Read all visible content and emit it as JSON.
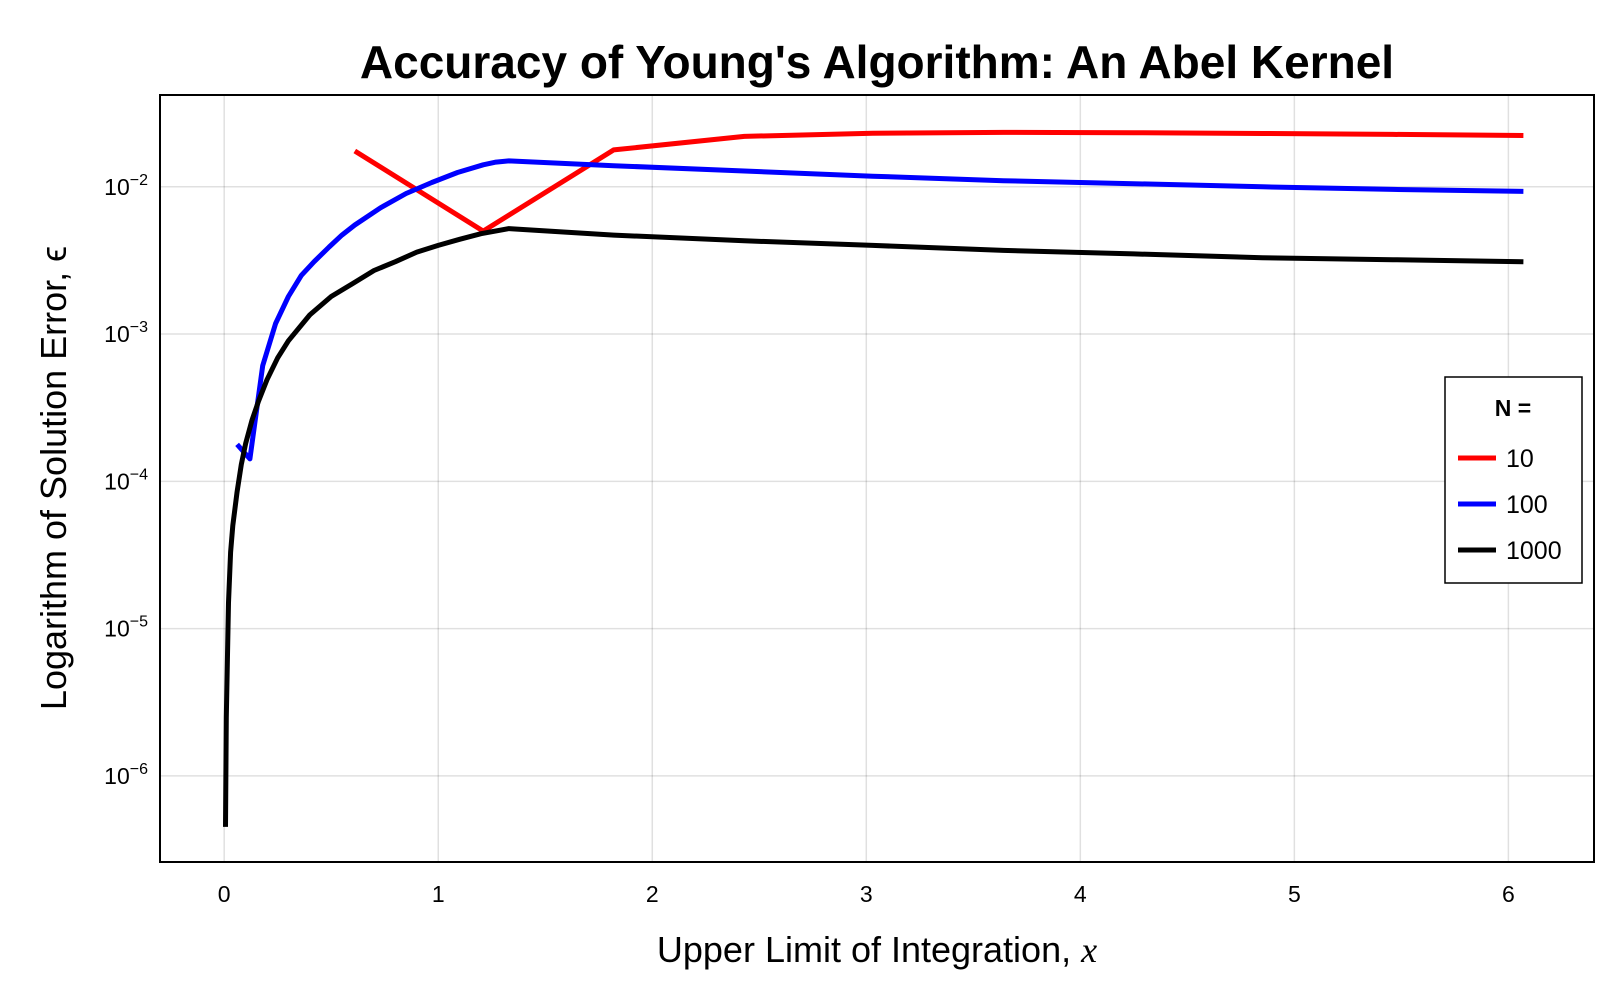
{
  "chart_data": {
    "type": "line",
    "title": "Accuracy of Young's Algorithm: An Abel Kernel",
    "xlabel": "Upper Limit of Integration, ",
    "xlabel_var": "x",
    "ylabel": "Logarithm of Solution Error, ϵ",
    "yscale": "log",
    "xlim": [
      -0.3,
      6.4
    ],
    "ylim": [
      2.6e-07,
      0.042
    ],
    "xticks": [
      0,
      1,
      2,
      3,
      4,
      5,
      6
    ],
    "xtick_labels": [
      "0",
      "1",
      "2",
      "3",
      "4",
      "5",
      "6"
    ],
    "yticks": [
      1e-06,
      1e-05,
      0.0001,
      0.001,
      0.01
    ],
    "ytick_base": "10",
    "ytick_exponents": [
      "−6",
      "−5",
      "−4",
      "−3",
      "−2"
    ],
    "grid": true,
    "legend": {
      "title": "N =",
      "position": "right"
    },
    "series": [
      {
        "name": "10",
        "color": "#ff0000",
        "x": [
          0.61,
          1.21,
          1.82,
          2.43,
          3.03,
          3.64,
          4.25,
          4.85,
          5.46,
          6.07
        ],
        "y": [
          0.0175,
          0.005,
          0.0178,
          0.022,
          0.0231,
          0.0234,
          0.0233,
          0.023,
          0.0227,
          0.0223
        ]
      },
      {
        "name": "100",
        "color": "#0000ff",
        "x": [
          0.06,
          0.12,
          0.18,
          0.24,
          0.3,
          0.36,
          0.42,
          0.49,
          0.55,
          0.61,
          0.73,
          0.85,
          0.97,
          1.09,
          1.21,
          1.27,
          1.33,
          1.82,
          2.43,
          3.03,
          3.64,
          4.25,
          4.85,
          5.46,
          6.07
        ],
        "y": [
          0.000178,
          0.000142,
          0.00061,
          0.00118,
          0.0018,
          0.0025,
          0.0031,
          0.0039,
          0.0047,
          0.0055,
          0.0072,
          0.009,
          0.0107,
          0.0125,
          0.0141,
          0.0147,
          0.015,
          0.0139,
          0.0128,
          0.0118,
          0.011,
          0.0105,
          0.01,
          0.0096,
          0.0093
        ]
      },
      {
        "name": "1000",
        "color": "#000000",
        "x": [
          0.006,
          0.01,
          0.02,
          0.03,
          0.04,
          0.06,
          0.08,
          0.1,
          0.13,
          0.16,
          0.2,
          0.25,
          0.3,
          0.4,
          0.5,
          0.6,
          0.7,
          0.8,
          0.9,
          1.0,
          1.1,
          1.2,
          1.33,
          1.82,
          2.43,
          3.03,
          3.64,
          4.25,
          4.85,
          5.46,
          6.07
        ],
        "y": [
          4.5e-07,
          2.5e-06,
          1.5e-05,
          3.3e-05,
          5e-05,
          8.5e-05,
          0.00013,
          0.00018,
          0.00026,
          0.00035,
          0.00049,
          0.00069,
          0.0009,
          0.00135,
          0.0018,
          0.0022,
          0.0027,
          0.0031,
          0.0036,
          0.004,
          0.0044,
          0.0048,
          0.0052,
          0.0047,
          0.0043,
          0.004,
          0.0037,
          0.0035,
          0.0033,
          0.0032,
          0.0031
        ]
      }
    ]
  }
}
